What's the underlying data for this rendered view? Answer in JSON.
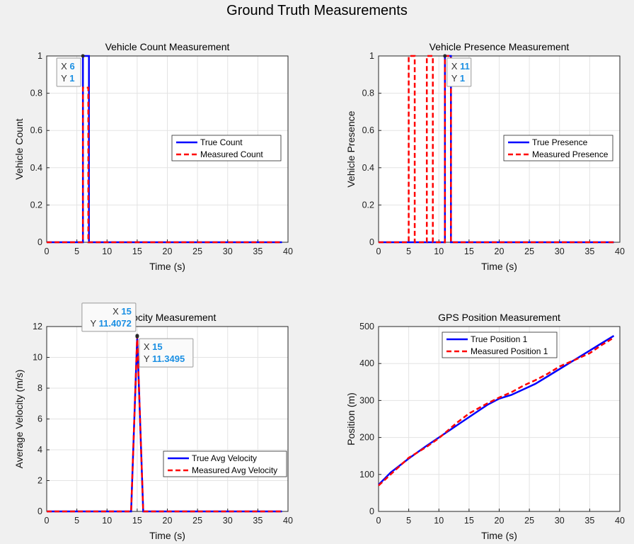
{
  "figure": {
    "title": "Ground Truth Measurements"
  },
  "chart_data": [
    {
      "type": "line",
      "title": "Vehicle Count Measurement",
      "xlabel": "Time (s)",
      "ylabel": "Vehicle Count",
      "xlim": [
        0,
        40
      ],
      "ylim": [
        0,
        1
      ],
      "xticks": [
        0,
        5,
        10,
        15,
        20,
        25,
        30,
        35,
        40
      ],
      "yticks": [
        0,
        0.2,
        0.4,
        0.6,
        0.8,
        1
      ],
      "ytick_labels": [
        "0",
        "0.2",
        "0.4",
        "0.6",
        "0.8",
        "1"
      ],
      "grid": true,
      "legend_position": "right-middle",
      "series": [
        {
          "name": "True Count",
          "color": "#0000ff",
          "style": "solid",
          "x": [
            0,
            6,
            6,
            7,
            7,
            39
          ],
          "y": [
            0,
            0,
            1,
            1,
            0,
            0
          ]
        },
        {
          "name": "Measured Count",
          "color": "#ff0000",
          "style": "dashed",
          "x": [
            0,
            6,
            6,
            6.9,
            6.9,
            39
          ],
          "y": [
            0,
            0,
            0.83,
            0.83,
            0,
            0
          ]
        }
      ],
      "datatips": [
        {
          "x": 6,
          "y": 1,
          "x_text": "6",
          "y_text": "1",
          "placement": "left"
        }
      ]
    },
    {
      "type": "line",
      "title": "Vehicle Presence Measurement",
      "xlabel": "Time (s)",
      "ylabel": "Vehicle Presence",
      "xlim": [
        0,
        40
      ],
      "ylim": [
        0,
        1
      ],
      "xticks": [
        0,
        5,
        10,
        15,
        20,
        25,
        30,
        35,
        40
      ],
      "yticks": [
        0,
        0.2,
        0.4,
        0.6,
        0.8,
        1
      ],
      "ytick_labels": [
        "0",
        "0.2",
        "0.4",
        "0.6",
        "0.8",
        "1"
      ],
      "grid": true,
      "legend_position": "right-middle",
      "series": [
        {
          "name": "True Presence",
          "color": "#0000ff",
          "style": "solid",
          "x": [
            0,
            11,
            11,
            12,
            12,
            39
          ],
          "y": [
            0,
            0,
            1,
            1,
            0,
            0
          ]
        },
        {
          "name": "Measured Presence",
          "color": "#ff0000",
          "style": "dashed",
          "x": [
            0,
            5,
            5,
            6,
            6,
            8,
            8,
            9,
            9,
            11,
            11,
            12,
            12,
            39
          ],
          "y": [
            0,
            0,
            1,
            1,
            0,
            0,
            1,
            1,
            0,
            0,
            1,
            1,
            0,
            0
          ]
        }
      ],
      "datatips": [
        {
          "x": 11,
          "y": 1,
          "x_text": "11",
          "y_text": "1",
          "placement": "right"
        }
      ]
    },
    {
      "type": "line",
      "title": "Velocity Measurement",
      "xlabel": "Time (s)",
      "ylabel": "Average Velocity (m/s)",
      "xlim": [
        0,
        40
      ],
      "ylim": [
        0,
        12
      ],
      "xticks": [
        0,
        5,
        10,
        15,
        20,
        25,
        30,
        35,
        40
      ],
      "yticks": [
        0,
        2,
        4,
        6,
        8,
        10,
        12
      ],
      "ytick_labels": [
        "0",
        "2",
        "4",
        "6",
        "8",
        "10",
        "12"
      ],
      "grid": true,
      "legend_position": "bottom-right",
      "series": [
        {
          "name": "True Avg Velocity",
          "color": "#0000ff",
          "style": "solid",
          "x": [
            0,
            14,
            15,
            16,
            39
          ],
          "y": [
            0,
            0,
            11.3495,
            0,
            0
          ]
        },
        {
          "name": "Measured Avg Velocity",
          "color": "#ff0000",
          "style": "dashed",
          "x": [
            0,
            14,
            15,
            16,
            39
          ],
          "y": [
            0,
            0,
            11.4072,
            0,
            0
          ]
        }
      ],
      "datatips": [
        {
          "x": 15,
          "y": 11.4072,
          "x_text": "15",
          "y_text": "11.4072",
          "placement": "above-left"
        },
        {
          "x": 15,
          "y": 11.3495,
          "x_text": "15",
          "y_text": "11.3495",
          "placement": "right"
        }
      ]
    },
    {
      "type": "line",
      "title": "GPS Position Measurement",
      "xlabel": "Time (s)",
      "ylabel": "Position (m)",
      "xlim": [
        0,
        40
      ],
      "ylim": [
        0,
        500
      ],
      "xticks": [
        0,
        5,
        10,
        15,
        20,
        25,
        30,
        35,
        40
      ],
      "yticks": [
        0,
        100,
        200,
        300,
        400,
        500
      ],
      "ytick_labels": [
        "0",
        "100",
        "200",
        "300",
        "400",
        "500"
      ],
      "grid": true,
      "legend_position": "top-center",
      "series": [
        {
          "name": "True Position 1",
          "color": "#0000ff",
          "style": "solid",
          "x": [
            0,
            2,
            5,
            8,
            10,
            13,
            15,
            18,
            20,
            22,
            24,
            26,
            28,
            30,
            33,
            35,
            37,
            39
          ],
          "y": [
            72,
            105,
            143,
            178,
            200,
            233,
            255,
            288,
            305,
            315,
            330,
            345,
            365,
            385,
            415,
            435,
            455,
            475
          ]
        },
        {
          "name": "Measured Position 1",
          "color": "#ff0000",
          "style": "dashed",
          "x": [
            0,
            2,
            5,
            8,
            10,
            13,
            15,
            18,
            20,
            22,
            24,
            26,
            28,
            30,
            33,
            35,
            37,
            39
          ],
          "y": [
            70,
            100,
            145,
            175,
            198,
            240,
            265,
            292,
            308,
            322,
            340,
            355,
            372,
            392,
            413,
            428,
            450,
            470
          ]
        }
      ],
      "datatips": []
    }
  ]
}
